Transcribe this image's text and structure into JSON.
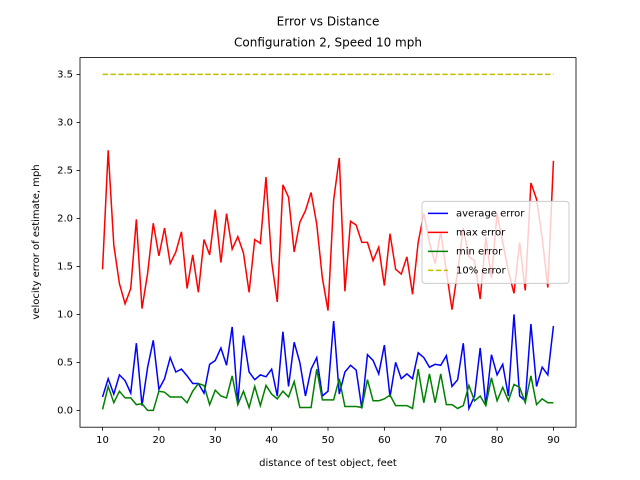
{
  "chart_data": {
    "type": "line",
    "title": "Error vs Distance",
    "subtitle": "Configuration 2, Speed 10 mph",
    "x_label": "distance of test object, feet",
    "y_label": "velocity error of estimate, mph",
    "x": [
      10,
      11,
      12,
      13,
      14,
      15,
      16,
      17,
      18,
      19,
      20,
      21,
      22,
      23,
      24,
      25,
      26,
      27,
      28,
      29,
      30,
      31,
      32,
      33,
      34,
      35,
      36,
      37,
      38,
      39,
      40,
      41,
      42,
      43,
      44,
      45,
      46,
      47,
      48,
      49,
      50,
      51,
      52,
      53,
      54,
      55,
      56,
      57,
      58,
      59,
      60,
      61,
      62,
      63,
      64,
      65,
      66,
      67,
      68,
      69,
      70,
      71,
      72,
      73,
      74,
      75,
      76,
      77,
      78,
      79,
      80,
      81,
      82,
      83,
      84,
      85,
      86,
      87,
      88,
      89,
      90
    ],
    "series": [
      {
        "name": "average error",
        "color": "#0000ff",
        "linestyle": "solid",
        "values": [
          0.14,
          0.33,
          0.17,
          0.37,
          0.31,
          0.18,
          0.7,
          0.05,
          0.45,
          0.73,
          0.22,
          0.33,
          0.55,
          0.4,
          0.43,
          0.36,
          0.28,
          0.28,
          0.18,
          0.48,
          0.52,
          0.65,
          0.47,
          0.87,
          0.08,
          0.78,
          0.4,
          0.32,
          0.37,
          0.35,
          0.43,
          0.15,
          0.82,
          0.25,
          0.71,
          0.5,
          0.15,
          0.43,
          0.55,
          0.15,
          0.2,
          0.93,
          0.17,
          0.4,
          0.47,
          0.42,
          0.02,
          0.58,
          0.52,
          0.38,
          0.68,
          0.14,
          0.5,
          0.33,
          0.38,
          0.33,
          0.6,
          0.55,
          0.45,
          0.48,
          0.47,
          0.57,
          0.25,
          0.32,
          0.7,
          0.02,
          0.15,
          0.65,
          0.05,
          0.58,
          0.37,
          0.48,
          0.15,
          1.0,
          0.15,
          0.1,
          0.9,
          0.25,
          0.45,
          0.37,
          0.88
        ]
      },
      {
        "name": "max error",
        "color": "#ff0000",
        "linestyle": "solid",
        "values": [
          1.47,
          2.71,
          1.72,
          1.32,
          1.11,
          1.27,
          1.99,
          1.06,
          1.43,
          1.95,
          1.61,
          1.9,
          1.53,
          1.65,
          1.86,
          1.27,
          1.62,
          1.23,
          1.78,
          1.62,
          2.09,
          1.54,
          2.05,
          1.68,
          1.81,
          1.64,
          1.23,
          1.78,
          1.74,
          2.43,
          1.55,
          1.13,
          2.35,
          2.22,
          1.65,
          1.96,
          2.08,
          2.27,
          1.94,
          1.38,
          1.04,
          2.19,
          2.63,
          1.24,
          1.97,
          1.93,
          1.75,
          1.75,
          1.56,
          1.7,
          1.3,
          1.84,
          1.47,
          1.42,
          1.6,
          1.21,
          1.75,
          2.05,
          1.75,
          1.53,
          1.86,
          1.45,
          1.05,
          1.45,
          1.9,
          1.6,
          1.56,
          1.16,
          1.8,
          1.38,
          2.05,
          1.75,
          1.45,
          1.22,
          1.75,
          1.25,
          2.37,
          2.2,
          1.8,
          1.28,
          2.6
        ]
      },
      {
        "name": "min error",
        "color": "#008000",
        "linestyle": "solid",
        "values": [
          0.01,
          0.25,
          0.08,
          0.2,
          0.13,
          0.13,
          0.06,
          0.07,
          0.0,
          0.0,
          0.2,
          0.19,
          0.14,
          0.14,
          0.14,
          0.08,
          0.2,
          0.28,
          0.26,
          0.06,
          0.21,
          0.15,
          0.13,
          0.36,
          0.06,
          0.2,
          0.03,
          0.25,
          0.05,
          0.26,
          0.17,
          0.12,
          0.2,
          0.14,
          0.3,
          0.03,
          0.03,
          0.03,
          0.43,
          0.11,
          0.11,
          0.11,
          0.33,
          0.04,
          0.04,
          0.04,
          0.03,
          0.32,
          0.1,
          0.1,
          0.12,
          0.16,
          0.05,
          0.05,
          0.05,
          0.02,
          0.43,
          0.08,
          0.38,
          0.08,
          0.38,
          0.06,
          0.06,
          0.02,
          0.05,
          0.26,
          0.1,
          0.15,
          0.05,
          0.34,
          0.1,
          0.24,
          0.1,
          0.27,
          0.24,
          0.08,
          0.36,
          0.06,
          0.12,
          0.08,
          0.08
        ]
      },
      {
        "name": "10% error",
        "color": "#bfbf00",
        "linestyle": "dashed",
        "x": [
          10,
          90
        ],
        "values": [
          3.5,
          3.5
        ]
      }
    ],
    "xlim": [
      6,
      94
    ],
    "ylim": [
      -0.175,
      3.675
    ],
    "xticks": [
      10,
      20,
      30,
      40,
      50,
      60,
      70,
      80,
      90
    ],
    "yticks": [
      {
        "value": 0,
        "label": "0.0"
      },
      0.5,
      {
        "value": 1,
        "label": "1.0"
      },
      1.5,
      {
        "value": 2,
        "label": "2.0"
      },
      2.5,
      {
        "value": 3,
        "label": "3.0"
      },
      3.5
    ],
    "legend_position": "center right",
    "grid": false
  }
}
